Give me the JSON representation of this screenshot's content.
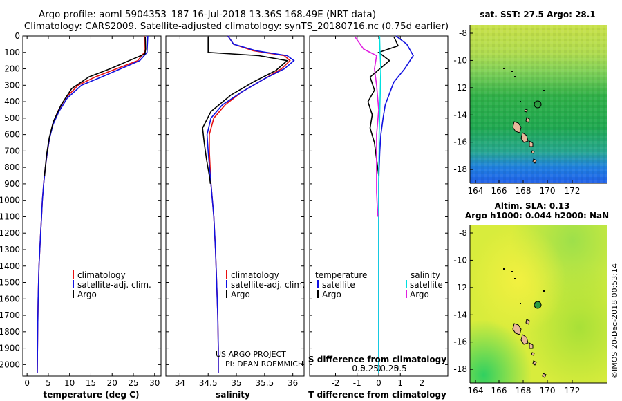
{
  "header": {
    "line1": "Argo profile: aoml 5904353_187 16-Jul-2018 13.36S 168.49E (NRT data)",
    "line2": "Climatology: CARS2009. Satellite-adjusted climatology: synTS_20180716.nc (0.75d earlier)"
  },
  "colors": {
    "climatology": "#e81010",
    "satellite": "#1010e0",
    "argo": "#000000",
    "satellite_salt": "#00e0e0",
    "argo_salt": "#e020e0"
  },
  "chart_data": [
    {
      "type": "line",
      "id": "temperature",
      "xlabel": "temperature (deg C)",
      "ylabel": "depth",
      "xlim": [
        -1,
        31.5
      ],
      "ylim": [
        2070,
        0
      ],
      "xticks": [
        0,
        5,
        10,
        15,
        20,
        25,
        30
      ],
      "xtick_labels": [
        "0",
        "5",
        "10",
        "15",
        "20",
        "25",
        "30"
      ],
      "yticks": [
        0,
        100,
        200,
        300,
        400,
        500,
        600,
        700,
        800,
        900,
        1000,
        1100,
        1200,
        1300,
        1400,
        1500,
        1600,
        1700,
        1800,
        1900,
        2000
      ],
      "ytick_labels": [
        "0",
        "100",
        "200",
        "300",
        "400",
        "500",
        "600",
        "700",
        "800",
        "900",
        "1000",
        "1100",
        "1200",
        "1300",
        "1400",
        "1500",
        "1600",
        "1700",
        "1800",
        "1900",
        "2000"
      ],
      "legend": [
        "climatology",
        "satellite-adj. clim.",
        "Argo"
      ],
      "series": [
        {
          "name": "climatology",
          "color": "#e81010",
          "x": [
            27.6,
            27.6,
            26.0,
            21.0,
            16.0,
            12.0,
            9.0,
            7.2,
            6.0,
            5.3,
            4.8,
            4.3,
            3.9,
            3.6,
            3.4,
            3.2,
            3.0,
            2.8,
            2.6,
            2.5,
            2.4
          ],
          "y": [
            0,
            100,
            150,
            200,
            250,
            300,
            380,
            460,
            540,
            620,
            700,
            800,
            900,
            1000,
            1100,
            1200,
            1300,
            1400,
            1600,
            1800,
            2050
          ]
        },
        {
          "name": "satellite-adj. clim.",
          "color": "#1010e0",
          "x": [
            28.4,
            28.2,
            26.5,
            22.0,
            17.5,
            12.8,
            9.4,
            7.5,
            6.1,
            5.3,
            4.8,
            4.3,
            3.9,
            3.6,
            3.4,
            3.2,
            3.0,
            2.8,
            2.6,
            2.5,
            2.4
          ],
          "y": [
            0,
            100,
            150,
            200,
            250,
            300,
            380,
            460,
            540,
            620,
            700,
            800,
            900,
            1000,
            1100,
            1200,
            1300,
            1400,
            1600,
            1800,
            2050
          ]
        },
        {
          "name": "Argo",
          "color": "#000000",
          "x": [
            27.8,
            27.9,
            27.7,
            24.0,
            19.5,
            14.5,
            10.5,
            8.0,
            6.2,
            5.2,
            4.6,
            4.1
          ],
          "y": [
            5,
            80,
            110,
            150,
            200,
            250,
            320,
            420,
            520,
            620,
            720,
            850
          ]
        }
      ]
    },
    {
      "type": "line",
      "id": "salinity",
      "xlabel": "salinity",
      "xlim": [
        33.75,
        36.2
      ],
      "ylim": [
        2070,
        0
      ],
      "xticks": [
        34,
        34.5,
        35,
        35.5,
        36
      ],
      "xtick_labels": [
        "34",
        "34.5",
        "35",
        "35.5",
        "36"
      ],
      "legend": [
        "climatology",
        "satellite-adj. clim.",
        "Argo"
      ],
      "credit": [
        "US ARGO PROJECT",
        "PI: DEAN ROEMMICH"
      ],
      "series": [
        {
          "name": "climatology",
          "color": "#e81010",
          "x": [
            34.85,
            34.95,
            35.3,
            35.85,
            35.95,
            35.8,
            35.5,
            35.1,
            34.8,
            34.6,
            34.52,
            34.52,
            34.55,
            34.6,
            34.63,
            34.65,
            34.67,
            34.68,
            34.68
          ],
          "y": [
            0,
            50,
            90,
            120,
            150,
            200,
            260,
            340,
            420,
            500,
            600,
            700,
            900,
            1100,
            1300,
            1500,
            1700,
            1900,
            2050
          ]
        },
        {
          "name": "satellite-adj. clim.",
          "color": "#1010e0",
          "x": [
            34.85,
            34.95,
            35.35,
            35.9,
            36.02,
            35.85,
            35.5,
            35.1,
            34.75,
            34.55,
            34.48,
            34.5,
            34.55,
            34.6,
            34.63,
            34.65,
            34.67,
            34.68,
            34.68
          ],
          "y": [
            0,
            50,
            90,
            120,
            150,
            200,
            260,
            340,
            420,
            500,
            600,
            700,
            900,
            1100,
            1300,
            1500,
            1700,
            1900,
            2050
          ]
        },
        {
          "name": "Argo",
          "color": "#000000",
          "x": [
            34.5,
            34.5,
            35.4,
            35.9,
            35.7,
            35.3,
            34.9,
            34.55,
            34.4,
            34.43,
            34.47,
            34.52,
            34.54
          ],
          "y": [
            5,
            100,
            120,
            150,
            210,
            280,
            360,
            460,
            560,
            650,
            750,
            850,
            900
          ]
        }
      ]
    },
    {
      "type": "line",
      "id": "differences",
      "xlabel": "T difference from climatology",
      "xlim": [
        -3.2,
        3.2
      ],
      "ylim": [
        2070,
        0
      ],
      "xticks": [
        -2,
        -1,
        0,
        1,
        2
      ],
      "xtick_labels": [
        "-2",
        "-1",
        "0",
        "1",
        "2"
      ],
      "s_xtick_labels": [
        "-0.5",
        "-0.25",
        "0",
        "0.25",
        "0.5"
      ],
      "s_xlabel": "S difference from climatology",
      "legend_titles": [
        "temperature",
        "salinity"
      ],
      "legend": [
        "satellite",
        "Argo",
        "satellite",
        "Argo"
      ],
      "series": [
        {
          "name": "T satellite",
          "color": "#1010e0",
          "x": [
            0.8,
            1.3,
            1.6,
            1.2,
            0.7,
            0.5,
            0.3,
            0.2,
            0.1,
            0.05,
            0.02,
            0.0,
            0.0,
            0.0,
            0.0,
            0.0,
            0.0
          ],
          "y": [
            0,
            50,
            120,
            200,
            280,
            350,
            420,
            500,
            600,
            700,
            800,
            900,
            1000,
            1200,
            1500,
            1800,
            2050
          ]
        },
        {
          "name": "T Argo",
          "color": "#000000",
          "x": [
            0.7,
            0.9,
            0.0,
            0.5,
            -0.4,
            -0.2,
            -0.5,
            -0.3,
            -0.4,
            -0.2,
            -0.1,
            0.0
          ],
          "y": [
            5,
            60,
            100,
            150,
            250,
            330,
            400,
            480,
            560,
            650,
            750,
            850
          ]
        },
        {
          "name": "S satellite",
          "color": "#00e0e0",
          "x": [
            0.02,
            0.03,
            0.05,
            0.04,
            0.03,
            0.02,
            0.01,
            0.01,
            0.0,
            0.0,
            0.0,
            0.0,
            0.0
          ],
          "y": [
            0,
            100,
            200,
            300,
            400,
            500,
            600,
            700,
            800,
            1000,
            1400,
            1800,
            2050
          ]
        },
        {
          "name": "S Argo",
          "color": "#e020e0",
          "x": [
            -0.55,
            -0.35,
            -0.05,
            -0.1,
            -0.05,
            0.0,
            -0.05,
            -0.05,
            -0.05,
            -0.05,
            -0.03,
            -0.02
          ],
          "y": [
            5,
            80,
            120,
            200,
            300,
            450,
            600,
            750,
            850,
            950,
            1050,
            1100
          ]
        }
      ]
    }
  ],
  "maps": {
    "sst": {
      "title": "sat. SST: 27.5 Argo: 28.1",
      "xticks": [
        "164",
        "166",
        "168",
        "170",
        "172"
      ],
      "yticks": [
        "-8",
        "-10",
        "-12",
        "-14",
        "-16",
        "-18"
      ]
    },
    "sla": {
      "title1": "Altim. SLA: 0.13",
      "title2": "Argo h1000: 0.044 h2000: NaN",
      "xticks": [
        "164",
        "166",
        "168",
        "170",
        "172"
      ],
      "yticks": [
        "-8",
        "-10",
        "-12",
        "-14",
        "-16",
        "-18"
      ]
    },
    "credit": "©IMOS 20-Dec-2018 00:53:14"
  }
}
